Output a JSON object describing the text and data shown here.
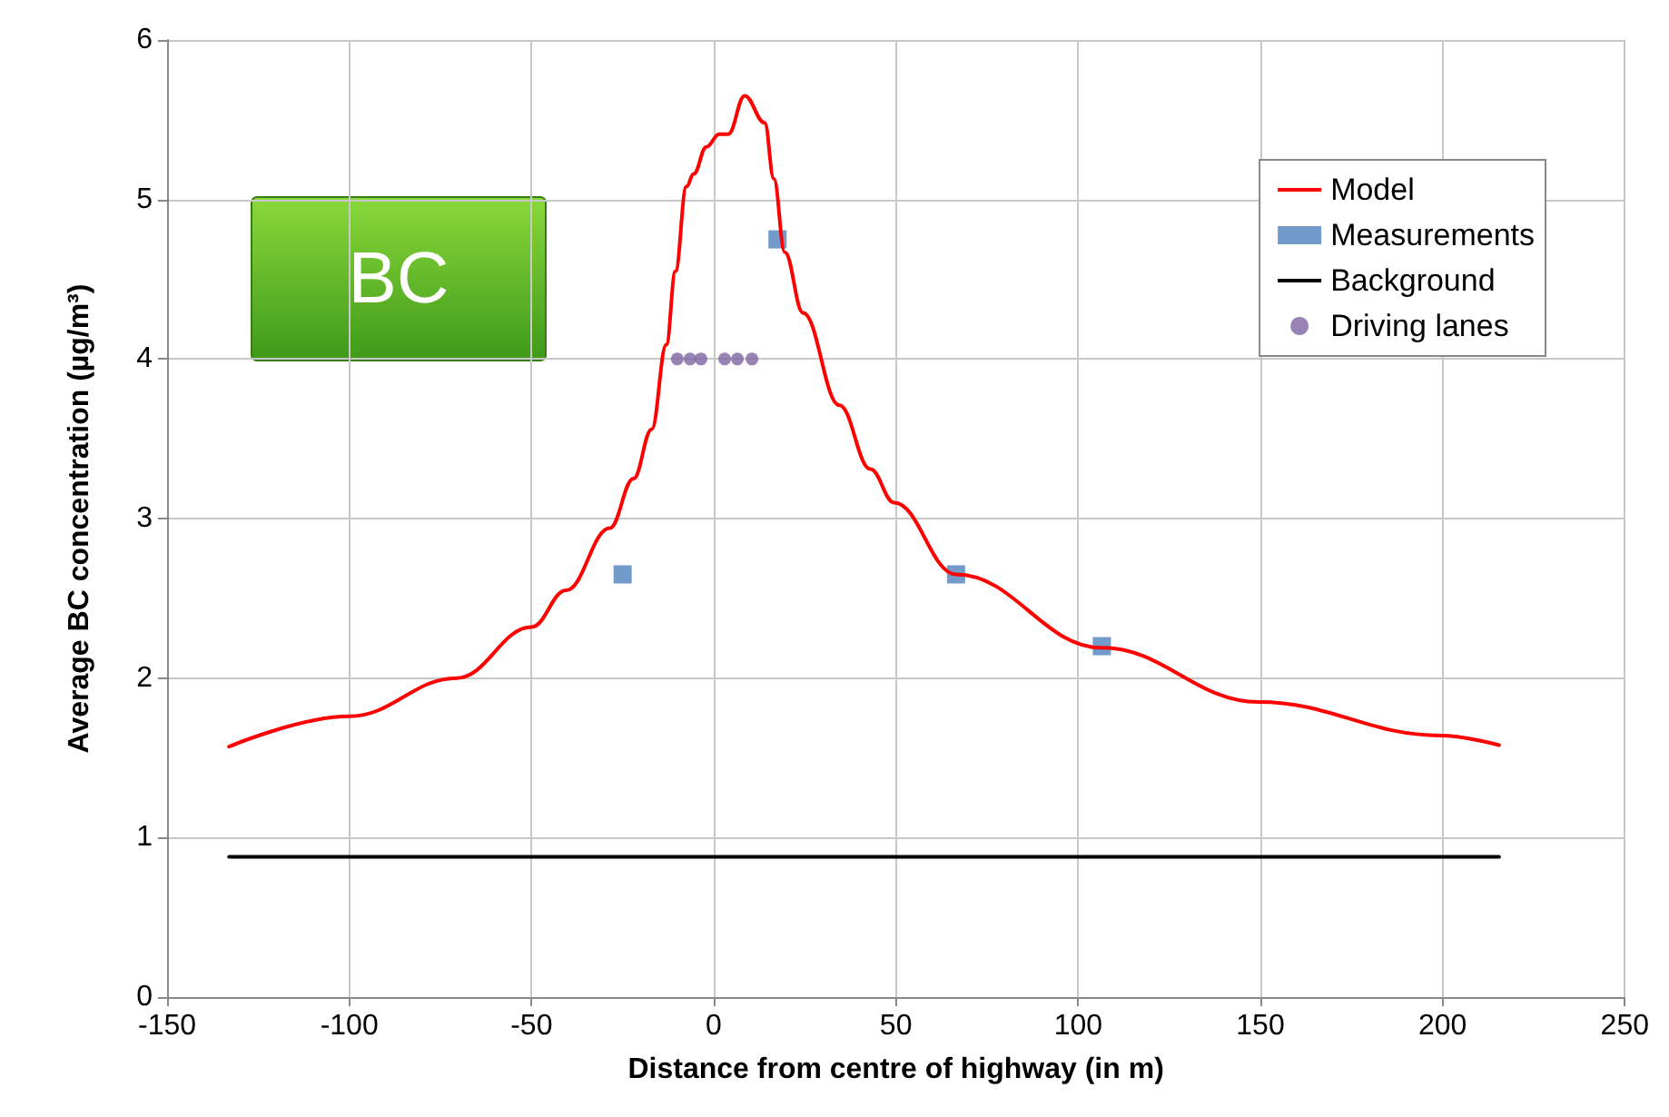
{
  "chart_data": {
    "type": "line",
    "xlabel": "Distance from centre of highway (in m)",
    "ylabel": "Average BC concentration (µg/m³)",
    "xlim": [
      -150,
      250
    ],
    "ylim": [
      0,
      6
    ],
    "xticks": [
      -150,
      -100,
      -50,
      0,
      50,
      100,
      150,
      200,
      250
    ],
    "yticks": [
      0,
      1,
      2,
      3,
      4,
      5,
      6
    ],
    "grid": true,
    "legend": "top right",
    "annotations": [
      "BC"
    ],
    "series": [
      {
        "name": "Model",
        "color": "#ff0000",
        "marker": "none",
        "line_style": "solid",
        "x": [
          -133,
          -100,
          -70.5,
          -50,
          -40.5,
          -28.5,
          -22,
          -17,
          -13,
          -10.5,
          -7.5,
          -5.5,
          -2,
          1.5,
          4,
          8.5,
          14,
          16.5,
          19.5,
          24.5,
          34.5,
          43,
          49.5,
          66.5,
          106.5,
          149.5,
          199.5,
          215.5
        ],
        "values": [
          1.57,
          1.76,
          2.0,
          2.32,
          2.55,
          2.94,
          3.25,
          3.56,
          4.09,
          4.55,
          5.08,
          5.16,
          5.33,
          5.41,
          5.41,
          5.65,
          5.48,
          5.13,
          4.67,
          4.29,
          3.71,
          3.31,
          3.1,
          2.65,
          2.19,
          1.85,
          1.64,
          1.58
        ]
      },
      {
        "name": "Measurements",
        "type": "scatter",
        "color": "#4f81bd",
        "marker": "square",
        "x": [
          -25,
          17.5,
          66.5,
          106.5
        ],
        "values": [
          2.65,
          4.75,
          2.65,
          2.2
        ]
      },
      {
        "name": "Background",
        "color": "#000000",
        "marker": "none",
        "line_style": "solid",
        "x": [
          -133,
          215.5
        ],
        "values": [
          0.88,
          0.88
        ]
      },
      {
        "name": "Driving lanes",
        "type": "scatter",
        "color": "#8064a2",
        "marker": "circle",
        "x": [
          -10,
          -6.5,
          -3.5,
          3,
          6.5,
          10.5
        ],
        "values": [
          4,
          4,
          4,
          4,
          4,
          4
        ]
      }
    ]
  }
}
